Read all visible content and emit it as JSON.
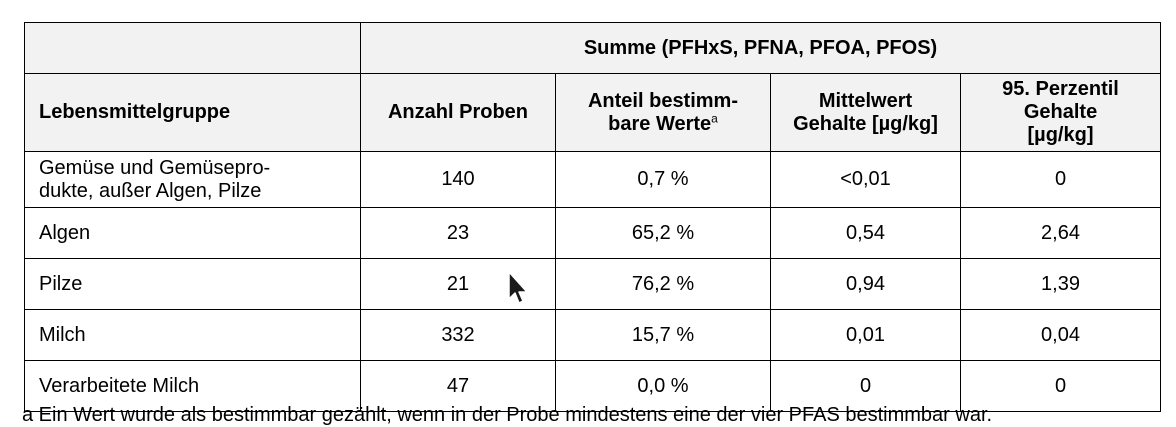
{
  "table": {
    "super_header": "Summe (PFHxS, PFNA, PFOA, PFOS)",
    "headers": {
      "group": "Lebensmittelgruppe",
      "count": "Anzahl Proben",
      "share_line1": "Anteil bestimm-",
      "share_line2": "bare Werte",
      "share_sup": "a",
      "mean_line1": "Mittelwert",
      "mean_line2": "Gehalte [µg/kg]",
      "p95_line1": "95. Perzentil",
      "p95_line2": "Gehalte",
      "p95_line3": "[µg/kg]"
    },
    "rows": [
      {
        "group_line1": "Gemüse und Gemüsepro-",
        "group_line2": "dukte, außer Algen, Pilze",
        "count": "140",
        "share": "0,7 %",
        "mean": "<0,01",
        "p95": "0"
      },
      {
        "group_line1": "Algen",
        "group_line2": "",
        "count": "23",
        "share": "65,2 %",
        "mean": "0,54",
        "p95": "2,64"
      },
      {
        "group_line1": "Pilze",
        "group_line2": "",
        "count": "21",
        "share": "76,2 %",
        "mean": "0,94",
        "p95": "1,39"
      },
      {
        "group_line1": "Milch",
        "group_line2": "",
        "count": "332",
        "share": "15,7 %",
        "mean": "0,01",
        "p95": "0,04"
      },
      {
        "group_line1": "Verarbeitete Milch",
        "group_line2": "",
        "count": "47",
        "share": "0,0 %",
        "mean": "0",
        "p95": "0"
      }
    ]
  },
  "footnote": "a Ein Wert wurde als bestimmbar gezählt, wenn in der Probe mindestens eine der vier PFAS bestimmbar war.",
  "cursor": {
    "icon": "mouse-pointer-icon"
  }
}
